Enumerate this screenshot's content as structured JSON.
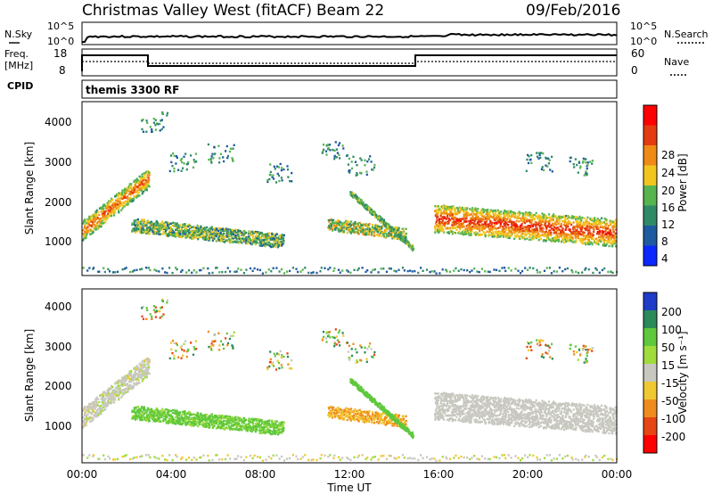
{
  "header": {
    "station": "Christmas Valley West (fitACF)",
    "beam": "Beam 22",
    "date": "09/Feb/2016"
  },
  "noise_panel": {
    "left_label": "N.Sky",
    "left_ticks": [
      "10^5",
      "10^0"
    ],
    "right_label": "N.Search",
    "right_ticks": [
      "10^5",
      "10^0"
    ]
  },
  "freq_panel": {
    "left_label_line1": "Freq.",
    "left_label_line2": "[MHz]",
    "left_ticks": [
      "18",
      "8"
    ],
    "right_label": "Nave",
    "right_ticks": [
      "60",
      "0"
    ]
  },
  "cpid_panel": {
    "label": "CPID",
    "program": "themis 3300 RF"
  },
  "power_panel": {
    "ylabel": "Slant Range [km]",
    "yticks": [
      "1000",
      "2000",
      "3000",
      "4000"
    ],
    "colorbar_label": "Power [dB]",
    "colorbar_ticks": [
      "4",
      "8",
      "12",
      "16",
      "20",
      "24",
      "28"
    ],
    "colorbar_colors": [
      "#0a28ff",
      "#1e5aa0",
      "#2f8a68",
      "#57b54f",
      "#f2c61f",
      "#f08a16",
      "#e43c10",
      "#ff0000"
    ]
  },
  "velocity_panel": {
    "ylabel": "Slant Range [km]",
    "yticks": [
      "1000",
      "2000",
      "3000",
      "4000"
    ],
    "colorbar_label": "Velocity [m s⁻¹]",
    "colorbar_ticks": [
      "200",
      "100",
      "50",
      "15",
      "-15",
      "-50",
      "-100",
      "-200"
    ],
    "colorbar_colors": [
      "#1e3cc8",
      "#2a8a5a",
      "#5fc83c",
      "#a0dc3c",
      "#c8c8c0",
      "#f0c832",
      "#f08c1e",
      "#e64614",
      "#ff0000"
    ]
  },
  "time_axis": {
    "xlabel": "Time UT",
    "ticks": [
      "00:00",
      "04:00",
      "08:00",
      "12:00",
      "16:00",
      "20:00",
      "00:00"
    ]
  },
  "chart_data": {
    "type": "heatmap",
    "title": "Christmas Valley West (fitACF) Beam 22 09/Feb/2016",
    "xlabel": "Time UT",
    "ylabel": "Slant Range [km]",
    "xlim": [
      "00:00",
      "24:00"
    ],
    "ylim": [
      180,
      4600
    ],
    "frequency_mhz": [
      {
        "time": "00:00",
        "value": 16
      },
      {
        "time": "03:00",
        "value": 10
      },
      {
        "time": "15:00",
        "value": 16
      },
      {
        "time": "24:00",
        "value": 16
      }
    ],
    "scatter_regions": [
      {
        "panel": "power",
        "start": "00:00",
        "end": "03:00",
        "range_start_km": 1300,
        "range_end_km": 2700,
        "power_db": 28,
        "velocity_ms": 0
      },
      {
        "panel": "power",
        "start": "02:00",
        "end": "09:00",
        "range_start_km": 1500,
        "range_end_km": 1000,
        "power_db": 16,
        "velocity_ms": 30
      },
      {
        "panel": "power",
        "start": "11:00",
        "end": "14:00",
        "range_start_km": 1500,
        "range_end_km": 1300,
        "power_db": 20,
        "velocity_ms": -50
      },
      {
        "panel": "power",
        "start": "16:00",
        "end": "24:00",
        "range_start_km": 1600,
        "range_end_km": 1200,
        "power_db": 28,
        "velocity_ms": 0
      }
    ]
  }
}
